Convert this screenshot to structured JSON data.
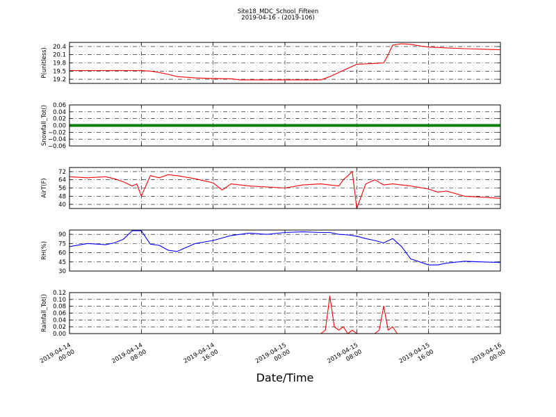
{
  "figure": {
    "title": "Site18_MDC_School_Fifteen",
    "subtitle": "2019-04-16 - (2019-106)",
    "xlabel": "Date/Time"
  },
  "chart_data": [
    {
      "type": "line",
      "ylabel": "P(unitless)",
      "ylim": [
        19.05,
        20.55
      ],
      "yticks": [
        "19.2",
        "19.5",
        "19.8",
        "20.1",
        "20.4"
      ],
      "color": "#ff0000",
      "x": [
        "2019-04-14 00:00",
        "2019-04-14 02:00",
        "2019-04-14 04:00",
        "2019-04-14 06:00",
        "2019-04-14 08:00",
        "2019-04-14 09:00",
        "2019-04-14 10:00",
        "2019-04-14 11:00",
        "2019-04-14 12:00",
        "2019-04-14 14:00",
        "2019-04-14 16:00",
        "2019-04-14 18:00",
        "2019-04-14 19:00",
        "2019-04-14 22:00",
        "2019-04-15 00:00",
        "2019-04-15 04:00",
        "2019-04-15 05:00",
        "2019-04-15 06:00",
        "2019-04-15 07:00",
        "2019-04-15 08:00",
        "2019-04-15 10:00",
        "2019-04-15 11:00",
        "2019-04-15 11:30",
        "2019-04-15 12:00",
        "2019-04-15 13:00",
        "2019-04-15 14:00",
        "2019-04-15 15:00",
        "2019-04-15 16:00",
        "2019-04-15 18:00",
        "2019-04-15 20:00",
        "2019-04-15 22:00",
        "2019-04-16 00:00"
      ],
      "values": [
        19.52,
        19.52,
        19.52,
        19.52,
        19.52,
        19.5,
        19.45,
        19.38,
        19.3,
        19.25,
        19.23,
        19.22,
        19.18,
        19.18,
        19.18,
        19.18,
        19.3,
        19.45,
        19.6,
        19.75,
        19.78,
        19.8,
        20.1,
        20.45,
        20.5,
        20.48,
        20.42,
        20.38,
        20.35,
        20.32,
        20.3,
        20.28
      ]
    },
    {
      "type": "line",
      "ylabel": "Snowfall_Tot()",
      "ylim": [
        -0.06,
        0.06
      ],
      "yticks": [
        "−0.06",
        "−0.04",
        "−0.02",
        "0.00",
        "0.02",
        "0.04",
        "0.06"
      ],
      "color": "#008000",
      "x": [
        "2019-04-14 00:00",
        "2019-04-16 00:00"
      ],
      "values": [
        0.0,
        0.0
      ]
    },
    {
      "type": "line",
      "ylabel": "AirT(F)",
      "ylim": [
        36,
        76
      ],
      "yticks": [
        "40",
        "48",
        "56",
        "64",
        "72"
      ],
      "color": "#ff0000",
      "x": [
        "2019-04-14 00:00",
        "2019-04-14 02:00",
        "2019-04-14 04:00",
        "2019-04-14 05:00",
        "2019-04-14 06:00",
        "2019-04-14 07:00",
        "2019-04-14 07:30",
        "2019-04-14 08:00",
        "2019-04-14 09:00",
        "2019-04-14 10:00",
        "2019-04-14 11:00",
        "2019-04-14 12:00",
        "2019-04-14 14:00",
        "2019-04-14 15:00",
        "2019-04-14 16:00",
        "2019-04-14 17:00",
        "2019-04-14 18:00",
        "2019-04-14 20:00",
        "2019-04-14 22:00",
        "2019-04-15 00:00",
        "2019-04-15 02:00",
        "2019-04-15 04:00",
        "2019-04-15 06:00",
        "2019-04-15 06:30",
        "2019-04-15 07:30",
        "2019-04-15 08:00",
        "2019-04-15 09:00",
        "2019-04-15 10:00",
        "2019-04-15 11:00",
        "2019-04-15 12:00",
        "2019-04-15 14:00",
        "2019-04-15 16:00",
        "2019-04-15 17:00",
        "2019-04-15 18:00",
        "2019-04-15 20:00",
        "2019-04-15 22:00",
        "2019-04-16 00:00"
      ],
      "values": [
        67,
        66,
        67,
        65,
        62,
        58,
        60,
        48,
        68,
        66,
        69,
        68,
        65,
        63,
        61,
        54,
        60,
        58,
        57,
        56,
        59,
        60,
        58,
        64,
        72,
        36,
        60,
        64,
        59,
        60,
        58,
        55,
        52,
        53,
        48,
        47,
        46
      ]
    },
    {
      "type": "line",
      "ylabel": "RH(%)",
      "ylim": [
        30,
        97
      ],
      "yticks": [
        "30",
        "45",
        "60",
        "75",
        "90"
      ],
      "color": "#0000ff",
      "x": [
        "2019-04-14 00:00",
        "2019-04-14 02:00",
        "2019-04-14 04:00",
        "2019-04-14 05:00",
        "2019-04-14 06:00",
        "2019-04-14 07:00",
        "2019-04-14 08:00",
        "2019-04-14 09:00",
        "2019-04-14 10:00",
        "2019-04-14 11:00",
        "2019-04-14 12:00",
        "2019-04-14 14:00",
        "2019-04-14 16:00",
        "2019-04-14 18:00",
        "2019-04-14 20:00",
        "2019-04-14 22:00",
        "2019-04-15 00:00",
        "2019-04-15 02:00",
        "2019-04-15 04:00",
        "2019-04-15 05:00",
        "2019-04-15 06:00",
        "2019-04-15 07:00",
        "2019-04-15 08:00",
        "2019-04-15 09:00",
        "2019-04-15 10:00",
        "2019-04-15 11:00",
        "2019-04-15 12:00",
        "2019-04-15 13:00",
        "2019-04-15 14:00",
        "2019-04-15 16:00",
        "2019-04-15 17:00",
        "2019-04-15 18:00",
        "2019-04-15 20:00",
        "2019-04-15 22:00",
        "2019-04-16 00:00"
      ],
      "values": [
        70,
        75,
        73,
        76,
        82,
        96,
        96,
        74,
        72,
        64,
        62,
        75,
        80,
        88,
        92,
        90,
        93,
        94,
        93,
        93,
        90,
        89,
        87,
        83,
        80,
        76,
        83,
        70,
        50,
        40,
        40,
        43,
        46,
        45,
        44
      ]
    },
    {
      "type": "line",
      "ylabel": "Rainfall_Tot()",
      "ylim": [
        0.0,
        0.12
      ],
      "yticks": [
        "0.00",
        "0.02",
        "0.04",
        "0.06",
        "0.08",
        "0.10",
        "0.12"
      ],
      "color": "#ff0000",
      "x": [
        "2019-04-14 00:00",
        "2019-04-15 04:00",
        "2019-04-15 04:30",
        "2019-04-15 05:00",
        "2019-04-15 05:30",
        "2019-04-15 06:00",
        "2019-04-15 06:30",
        "2019-04-15 07:00",
        "2019-04-15 07:30",
        "2019-04-15 08:00",
        "2019-04-15 10:00",
        "2019-04-15 10:30",
        "2019-04-15 11:00",
        "2019-04-15 11:30",
        "2019-04-15 12:00",
        "2019-04-15 12:30",
        "2019-04-15 13:00",
        "2019-04-16 00:00"
      ],
      "values": [
        0.0,
        0.0,
        0.01,
        0.11,
        0.02,
        0.01,
        0.02,
        0.0,
        0.01,
        0.0,
        0.0,
        0.01,
        0.08,
        0.01,
        0.02,
        0.0,
        0.0,
        0.0
      ]
    }
  ],
  "xaxis": {
    "range": [
      "2019-04-14 00:00",
      "2019-04-16 00:00"
    ],
    "ticks": [
      {
        "t": "2019-04-14 00:00",
        "l1": "2019-04-14",
        "l2": "00:00"
      },
      {
        "t": "2019-04-14 08:00",
        "l1": "2019-04-14",
        "l2": "08:00"
      },
      {
        "t": "2019-04-14 16:00",
        "l1": "2019-04-14",
        "l2": "16:00"
      },
      {
        "t": "2019-04-15 00:00",
        "l1": "2019-04-15",
        "l2": "00:00"
      },
      {
        "t": "2019-04-15 08:00",
        "l1": "2019-04-15",
        "l2": "08:00"
      },
      {
        "t": "2019-04-15 16:00",
        "l1": "2019-04-15",
        "l2": "16:00"
      },
      {
        "t": "2019-04-16 00:00",
        "l1": "2019-04-16",
        "l2": "00:00"
      }
    ]
  }
}
